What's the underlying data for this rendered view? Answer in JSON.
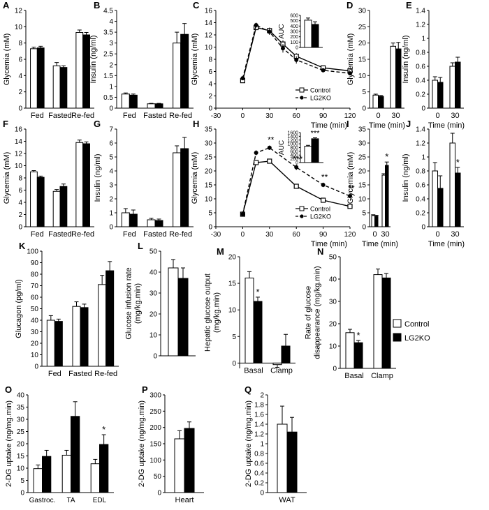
{
  "legend": {
    "items": [
      {
        "label": "Control",
        "color": "#ffffff"
      },
      {
        "label": "LG2KO",
        "color": "#000000"
      }
    ]
  },
  "chart_data": [
    {
      "id": "A",
      "type": "bar",
      "categories": [
        "Fed",
        "Fasted",
        "Re-fed"
      ],
      "ylabel": "Glycemia (mM)",
      "ylim": [
        0,
        12
      ],
      "yticks": [
        0,
        2,
        4,
        6,
        8,
        10,
        12
      ],
      "series": [
        {
          "name": "Control",
          "values": [
            7.3,
            5.2,
            9.3
          ],
          "errors": [
            0.2,
            0.4,
            0.3
          ]
        },
        {
          "name": "LG2KO",
          "values": [
            7.4,
            5.0,
            9.0
          ],
          "errors": [
            0.2,
            0.2,
            0.3
          ]
        }
      ]
    },
    {
      "id": "B",
      "type": "bar",
      "categories": [
        "Fed",
        "Fasted",
        "Re-fed"
      ],
      "ylabel": "Insulin (ng/ml)",
      "ylim": [
        0,
        4.5
      ],
      "yticks": [
        0,
        0.5,
        1,
        1.5,
        2,
        2.5,
        3,
        3.5,
        4,
        4.5
      ],
      "series": [
        {
          "name": "Control",
          "values": [
            0.65,
            0.2,
            3.0
          ],
          "errors": [
            0.05,
            0.02,
            0.5
          ]
        },
        {
          "name": "LG2KO",
          "values": [
            0.6,
            0.2,
            3.4
          ],
          "errors": [
            0.05,
            0.02,
            0.5
          ]
        }
      ]
    },
    {
      "id": "C",
      "type": "line",
      "x": [
        0,
        15,
        30,
        45,
        60,
        90,
        120
      ],
      "xlabel": "Time (min)",
      "ylabel": "Glycemia (mM)",
      "xlim": [
        -30,
        120
      ],
      "xticks": [
        -30,
        0,
        30,
        60,
        90,
        120
      ],
      "ylim": [
        0,
        16
      ],
      "yticks": [
        0,
        2,
        4,
        6,
        8,
        10,
        12,
        14,
        16
      ],
      "series": [
        {
          "name": "Control",
          "values": [
            4.5,
            13.2,
            12.7,
            10.5,
            8.5,
            6.6,
            6.1
          ],
          "errors": [
            0.3,
            0.4,
            0.5,
            0.6,
            0.5,
            0.3,
            0.3
          ]
        },
        {
          "name": "LG2KO",
          "values": [
            4.9,
            13.6,
            12.5,
            9.8,
            7.9,
            6.2,
            5.7
          ],
          "errors": [
            0.2,
            0.4,
            0.5,
            0.7,
            0.6,
            0.3,
            0.3
          ]
        }
      ],
      "legend": [
        "Control",
        "LG2KO"
      ],
      "inset": {
        "ylabel": "AUC",
        "ylim": [
          0,
          600
        ],
        "yticks": [
          0,
          100,
          200,
          300,
          400,
          500,
          600
        ],
        "values": [
          510,
          430
        ],
        "errors": [
          40,
          50
        ]
      }
    },
    {
      "id": "D",
      "type": "bar",
      "categories": [
        "0",
        "30"
      ],
      "xlabel": "Time (min)",
      "ylabel": "Glycemia (mM)",
      "ylim": [
        0,
        30
      ],
      "yticks": [
        0,
        5,
        10,
        15,
        20,
        25,
        30
      ],
      "series": [
        {
          "name": "Control",
          "values": [
            4.0,
            19.0
          ],
          "errors": [
            0.3,
            1.0
          ]
        },
        {
          "name": "LG2KO",
          "values": [
            3.6,
            18.2
          ],
          "errors": [
            0.3,
            2.0
          ]
        }
      ]
    },
    {
      "id": "E",
      "type": "bar",
      "categories": [
        "0",
        "30"
      ],
      "xlabel": "Time (min)",
      "ylabel": "Insulin (ng/ml)",
      "ylim": [
        0,
        1.4
      ],
      "yticks": [
        0,
        0.2,
        0.4,
        0.6,
        0.8,
        1,
        1.2,
        1.4
      ],
      "series": [
        {
          "name": "Control",
          "values": [
            0.4,
            0.6
          ],
          "errors": [
            0.05,
            0.05
          ]
        },
        {
          "name": "LG2KO",
          "values": [
            0.37,
            0.66
          ],
          "errors": [
            0.07,
            0.07
          ]
        }
      ]
    },
    {
      "id": "F",
      "type": "bar",
      "categories": [
        "Fed",
        "Fasted",
        "Re-fed"
      ],
      "ylabel": "Glycemia (mM)",
      "ylim": [
        0,
        16
      ],
      "yticks": [
        0,
        2,
        4,
        6,
        8,
        10,
        12,
        14,
        16
      ],
      "series": [
        {
          "name": "Control",
          "values": [
            9.0,
            5.8,
            13.8
          ],
          "errors": [
            0.2,
            0.3,
            0.4
          ]
        },
        {
          "name": "LG2KO",
          "values": [
            8.1,
            6.6,
            13.6
          ],
          "errors": [
            0.2,
            0.4,
            0.3
          ]
        }
      ]
    },
    {
      "id": "G",
      "type": "bar",
      "categories": [
        "Fed",
        "Fasted",
        "Re-fed"
      ],
      "ylabel": "Insulin (ng/ml)",
      "ylim": [
        0,
        7
      ],
      "yticks": [
        0,
        1,
        2,
        3,
        4,
        5,
        6,
        7
      ],
      "series": [
        {
          "name": "Control",
          "values": [
            1.0,
            0.5,
            5.3
          ],
          "errors": [
            0.3,
            0.1,
            0.5
          ]
        },
        {
          "name": "LG2KO",
          "values": [
            0.9,
            0.45,
            5.6
          ],
          "errors": [
            0.3,
            0.1,
            0.8
          ]
        }
      ]
    },
    {
      "id": "H",
      "type": "line",
      "x": [
        0,
        15,
        30,
        60,
        90,
        120
      ],
      "xlabel": "Time (min)",
      "ylabel": "Glycemia (mM)",
      "xlim": [
        -30,
        120
      ],
      "xticks": [
        -30,
        0,
        30,
        60,
        90,
        120
      ],
      "ylim": [
        0,
        35
      ],
      "yticks": [
        0,
        5,
        10,
        15,
        20,
        25,
        30,
        35
      ],
      "series": [
        {
          "name": "Control",
          "values": [
            4.5,
            23.0,
            23.5,
            14.5,
            9.5,
            7.3
          ],
          "errors": [
            0.4,
            0.6,
            0.6,
            0.6,
            0.5,
            0.5
          ]
        },
        {
          "name": "LG2KO",
          "values": [
            4.5,
            26.5,
            28.3,
            21.3,
            15.0,
            11.0
          ],
          "errors": [
            0.4,
            0.9,
            0.8,
            1.0,
            0.8,
            0.7
          ]
        }
      ],
      "significance": [
        {
          "x": 30,
          "label": "**"
        },
        {
          "x": 60,
          "label": "***"
        },
        {
          "x": 90,
          "label": "**"
        },
        {
          "x": 120,
          "label": "**"
        }
      ],
      "legend": [
        "Control",
        "LG2KO"
      ],
      "inset": {
        "ylabel": "AUC",
        "ylim": [
          0,
          1600
        ],
        "yticks": [
          0,
          200,
          400,
          600,
          800,
          1000,
          1200,
          1400,
          1600
        ],
        "values": [
          870,
          1270
        ],
        "errors": [
          50,
          50
        ],
        "significance": "***"
      }
    },
    {
      "id": "I",
      "type": "bar",
      "categories": [
        "0",
        "30"
      ],
      "xlabel": "Time (min)",
      "ylabel": "Glycemia (mM)",
      "ylim": [
        0,
        35
      ],
      "yticks": [
        0,
        5,
        10,
        15,
        20,
        25,
        30,
        35
      ],
      "series": [
        {
          "name": "Control",
          "values": [
            4.0,
            18.5
          ],
          "errors": [
            0.3,
            0.5
          ]
        },
        {
          "name": "LG2KO",
          "values": [
            3.8,
            22.0
          ],
          "errors": [
            0.3,
            1.2
          ]
        }
      ],
      "significance": [
        {
          "category": "30",
          "label": "*"
        }
      ]
    },
    {
      "id": "J",
      "type": "bar",
      "categories": [
        "0",
        "30"
      ],
      "xlabel": "Time (min)",
      "ylabel": "Insulin (ng/ml)",
      "ylim": [
        0,
        1.4
      ],
      "yticks": [
        0,
        0.2,
        0.4,
        0.6,
        0.8,
        1,
        1.2,
        1.4
      ],
      "series": [
        {
          "name": "Control",
          "values": [
            0.8,
            1.2
          ],
          "errors": [
            0.12,
            0.14
          ]
        },
        {
          "name": "LG2KO",
          "values": [
            0.55,
            0.77
          ],
          "errors": [
            0.18,
            0.08
          ]
        }
      ],
      "significance": [
        {
          "category": "30",
          "label": "*"
        }
      ]
    },
    {
      "id": "K",
      "type": "bar",
      "categories": [
        "Fed",
        "Fasted",
        "Re-fed"
      ],
      "ylabel": "Glucagon (pg/ml)",
      "ylim": [
        0,
        100
      ],
      "yticks": [
        0,
        10,
        20,
        30,
        40,
        50,
        60,
        70,
        80,
        90,
        100
      ],
      "series": [
        {
          "name": "Control",
          "values": [
            40,
            52,
            71
          ],
          "errors": [
            4,
            4,
            8
          ]
        },
        {
          "name": "LG2KO",
          "values": [
            39,
            51,
            83
          ],
          "errors": [
            2,
            3,
            8
          ]
        }
      ]
    },
    {
      "id": "L",
      "type": "bar",
      "categories": [
        ""
      ],
      "ylabel": "Glucose infusion rate\n(mg/kg.min)",
      "ylim": [
        0,
        50
      ],
      "yticks": [
        0,
        10,
        20,
        30,
        40,
        50
      ],
      "series": [
        {
          "name": "Control",
          "values": [
            42
          ],
          "errors": [
            4
          ]
        },
        {
          "name": "LG2KO",
          "values": [
            37
          ],
          "errors": [
            5
          ]
        }
      ]
    },
    {
      "id": "M",
      "type": "bar",
      "categories": [
        "Basal",
        "Clamp"
      ],
      "ylabel": "Hepatic glucose output\n(mg/kg.min)",
      "ylim": [
        0,
        20
      ],
      "yticks": [
        0,
        5,
        10,
        15,
        20
      ],
      "ymin_draw": -1,
      "series": [
        {
          "name": "Control",
          "values": [
            16,
            -0.3
          ],
          "errors": [
            1.2,
            0.5
          ]
        },
        {
          "name": "LG2KO",
          "values": [
            11.6,
            3.2
          ],
          "errors": [
            0.8,
            2.2
          ]
        }
      ],
      "significance": [
        {
          "category": "Basal",
          "label": "*"
        }
      ]
    },
    {
      "id": "N",
      "type": "bar",
      "categories": [
        "Basal",
        "Clamp"
      ],
      "ylabel": "Rate of glucose\ndisappearance (mg/kg.min)",
      "ylim": [
        0,
        50
      ],
      "yticks": [
        0,
        10,
        20,
        30,
        40,
        50
      ],
      "series": [
        {
          "name": "Control",
          "values": [
            16,
            42
          ],
          "errors": [
            1.5,
            2.5
          ]
        },
        {
          "name": "LG2KO",
          "values": [
            11.5,
            40.5
          ],
          "errors": [
            1,
            2
          ]
        }
      ],
      "significance": [
        {
          "category": "Basal",
          "label": "*"
        }
      ]
    },
    {
      "id": "O",
      "type": "bar",
      "categories": [
        "Gastroc.",
        "TA",
        "EDL"
      ],
      "ylabel": "2-DG uptake (ng/mg.min)",
      "ylim": [
        0,
        40
      ],
      "yticks": [
        0,
        5,
        10,
        15,
        20,
        25,
        30,
        35,
        40
      ],
      "series": [
        {
          "name": "Control",
          "values": [
            9.8,
            15.3,
            11.8
          ],
          "errors": [
            1.5,
            2,
            1.8
          ]
        },
        {
          "name": "LG2KO",
          "values": [
            14.8,
            31.2,
            19.7
          ],
          "errors": [
            2.5,
            6,
            4
          ]
        }
      ],
      "significance": [
        {
          "category": "EDL",
          "label": "*"
        }
      ]
    },
    {
      "id": "P",
      "type": "bar",
      "categories": [
        "Heart"
      ],
      "ylabel": "2-DG uptake (ng/mg.min)",
      "ylim": [
        0,
        300
      ],
      "yticks": [
        0,
        50,
        100,
        150,
        200,
        250,
        300
      ],
      "series": [
        {
          "name": "Control",
          "values": [
            165
          ],
          "errors": [
            25
          ]
        },
        {
          "name": "LG2KO",
          "values": [
            197
          ],
          "errors": [
            20
          ]
        }
      ]
    },
    {
      "id": "Q",
      "type": "bar",
      "categories": [
        "WAT"
      ],
      "ylabel": "2-DG uptake (ng/mg.min)",
      "ylim": [
        0,
        2
      ],
      "yticks": [
        0,
        0.2,
        0.4,
        0.6,
        0.8,
        1,
        1.2,
        1.4,
        1.6,
        1.8,
        2
      ],
      "series": [
        {
          "name": "Control",
          "values": [
            1.4
          ],
          "errors": [
            0.37
          ]
        },
        {
          "name": "LG2KO",
          "values": [
            1.24
          ],
          "errors": [
            0.3
          ]
        }
      ]
    }
  ]
}
